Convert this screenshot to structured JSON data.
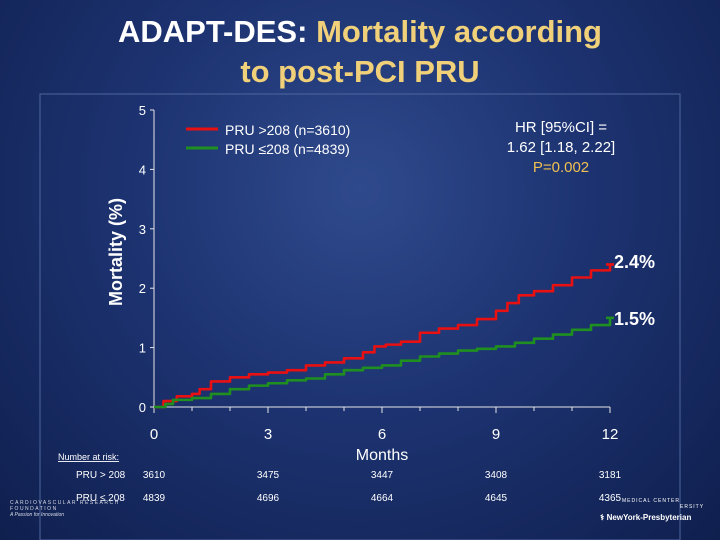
{
  "title": {
    "prefix": "ADAPT-DES:",
    "accent": "Mortality according",
    "line2": "to post-PCI PRU"
  },
  "colors": {
    "high": "#e81010",
    "low": "#1f8f1f",
    "text": "#ffffff",
    "accent": "#f1d07a",
    "hr": "#f0c050"
  },
  "chart_data": {
    "type": "line",
    "xlabel": "Months",
    "ylabel": "Mortality (%)",
    "xlim": [
      0,
      12
    ],
    "ylim": [
      0,
      5
    ],
    "xticks": [
      0,
      3,
      6,
      9,
      12
    ],
    "yticks": [
      0,
      1,
      2,
      3,
      4,
      5
    ],
    "series": [
      {
        "name": "PRU >208 (n=3610)",
        "color": "#e81010",
        "end_label": "2.4%",
        "points": [
          [
            0,
            0
          ],
          [
            0.25,
            0.1
          ],
          [
            0.6,
            0.18
          ],
          [
            1.0,
            0.22
          ],
          [
            1.2,
            0.3
          ],
          [
            1.5,
            0.43
          ],
          [
            2.0,
            0.5
          ],
          [
            2.5,
            0.55
          ],
          [
            3.0,
            0.58
          ],
          [
            3.5,
            0.62
          ],
          [
            4.0,
            0.7
          ],
          [
            4.5,
            0.75
          ],
          [
            5.0,
            0.82
          ],
          [
            5.5,
            0.92
          ],
          [
            5.8,
            1.02
          ],
          [
            6.1,
            1.05
          ],
          [
            6.5,
            1.1
          ],
          [
            7.0,
            1.25
          ],
          [
            7.5,
            1.32
          ],
          [
            8.0,
            1.38
          ],
          [
            8.5,
            1.48
          ],
          [
            9.0,
            1.62
          ],
          [
            9.3,
            1.75
          ],
          [
            9.6,
            1.88
          ],
          [
            10.0,
            1.95
          ],
          [
            10.5,
            2.05
          ],
          [
            11.0,
            2.18
          ],
          [
            11.5,
            2.3
          ],
          [
            12.0,
            2.4
          ]
        ]
      },
      {
        "name": "PRU ≤208 (n=4839)",
        "color": "#1f8f1f",
        "end_label": "1.5%",
        "points": [
          [
            0,
            0
          ],
          [
            0.3,
            0.05
          ],
          [
            0.5,
            0.12
          ],
          [
            1.0,
            0.15
          ],
          [
            1.5,
            0.22
          ],
          [
            2.0,
            0.3
          ],
          [
            2.5,
            0.36
          ],
          [
            3.0,
            0.4
          ],
          [
            3.5,
            0.45
          ],
          [
            4.0,
            0.48
          ],
          [
            4.5,
            0.55
          ],
          [
            5.0,
            0.62
          ],
          [
            5.5,
            0.66
          ],
          [
            6.0,
            0.7
          ],
          [
            6.5,
            0.78
          ],
          [
            7.0,
            0.85
          ],
          [
            7.5,
            0.9
          ],
          [
            8.0,
            0.95
          ],
          [
            8.5,
            0.98
          ],
          [
            9.0,
            1.02
          ],
          [
            9.5,
            1.08
          ],
          [
            10.0,
            1.15
          ],
          [
            10.5,
            1.22
          ],
          [
            11.0,
            1.3
          ],
          [
            11.5,
            1.38
          ],
          [
            12.0,
            1.5
          ]
        ]
      }
    ],
    "annotation": {
      "line1": "HR [95%CI] =",
      "line2": "1.62 [1.18, 2.22]",
      "line3": "P=0.002"
    },
    "risk_table": {
      "title": "Number at risk:",
      "rows": [
        {
          "label": "PRU > 208",
          "values": [
            "3610",
            "3475",
            "3447",
            "3408",
            "3181"
          ]
        },
        {
          "label": "PRU ≤ 208",
          "values": [
            "4839",
            "4696",
            "4664",
            "4645",
            "4365"
          ]
        }
      ]
    }
  },
  "footer": {
    "left_org_line1": "CARDIOVASCULAR RESEARCH",
    "left_org_line2": "FOUNDATION",
    "left_tagline": "A Passion for Innovation",
    "right_university": "ERSITY",
    "right_center": "MEDICAL CENTER",
    "right_hospital": "NewYork-Presbyterian"
  }
}
